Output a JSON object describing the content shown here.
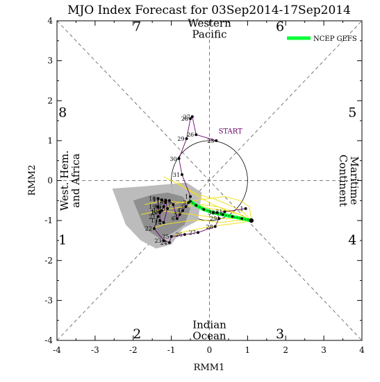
{
  "chart_data": {
    "type": "line",
    "title": "MJO Index Forecast for 03Sep2014-17Sep2014",
    "xlabel": "RMM1",
    "ylabel": "RMM2",
    "xlim": [
      -4,
      4
    ],
    "ylim": [
      -4,
      4
    ],
    "x_ticks": [
      "-4",
      "-3",
      "-2",
      "-1",
      "0",
      "1",
      "2",
      "3",
      "4"
    ],
    "y_ticks": [
      "-4",
      "-3",
      "-2",
      "-1",
      "0",
      "1",
      "2",
      "3",
      "4"
    ],
    "amplitude_circle_radius": 1,
    "grid": false,
    "legend": {
      "position": "top-right",
      "entries": [
        {
          "label": "NCEP GEFS",
          "color": "#00ff33"
        }
      ]
    },
    "phase_numbers": [
      {
        "label": "7",
        "x": -1.9,
        "y": 3.75
      },
      {
        "label": "6",
        "x": 1.85,
        "y": 3.75
      },
      {
        "label": "8",
        "x": -3.85,
        "y": 1.6
      },
      {
        "label": "5",
        "x": 3.75,
        "y": 1.6
      },
      {
        "label": "1",
        "x": -3.85,
        "y": -1.6
      },
      {
        "label": "4",
        "x": 3.75,
        "y": -1.6
      },
      {
        "label": "2",
        "x": -1.9,
        "y": -3.95
      },
      {
        "label": "3",
        "x": 1.85,
        "y": -3.95
      }
    ],
    "region_labels": [
      {
        "lines": [
          "Western",
          "Pacific"
        ],
        "x": 0,
        "y": 3.8,
        "rotate": 0
      },
      {
        "lines": [
          "Indian",
          "Ocean"
        ],
        "x": 0,
        "y": -3.75,
        "rotate": 0
      },
      {
        "lines": [
          "West. Hem.",
          "and Africa"
        ],
        "x": -3.65,
        "y": 0,
        "rotate": -90
      },
      {
        "lines": [
          "Maritime",
          "Continent"
        ],
        "x": 3.65,
        "y": 0,
        "rotate": 90
      }
    ],
    "start_label": {
      "text": "START",
      "x": 0.55,
      "y": 1.18
    },
    "observed_series": {
      "name": "",
      "color": "#660066",
      "points": [
        {
          "label": "25",
          "x": 0.18,
          "y": 1.0
        },
        {
          "label": "26",
          "x": -0.35,
          "y": 1.15
        },
        {
          "label": "27",
          "x": -0.45,
          "y": 1.6
        },
        {
          "label": "28",
          "x": -0.5,
          "y": 1.55
        },
        {
          "label": "29",
          "x": -0.6,
          "y": 1.05
        },
        {
          "label": "30",
          "x": -0.8,
          "y": 0.55
        },
        {
          "label": "31",
          "x": -0.72,
          "y": 0.15
        },
        {
          "label": "1",
          "x": -0.5,
          "y": -0.4
        },
        {
          "label": "2",
          "x": -0.55,
          "y": -0.55
        },
        {
          "label": "3",
          "x": -0.62,
          "y": -0.65
        },
        {
          "label": "4",
          "x": -0.7,
          "y": -0.75
        },
        {
          "label": "5",
          "x": -0.78,
          "y": -0.85
        },
        {
          "label": "6",
          "x": -0.85,
          "y": -0.95
        },
        {
          "label": "7",
          "x": -0.95,
          "y": -0.6
        },
        {
          "label": "8",
          "x": -1.05,
          "y": -0.5
        },
        {
          "label": "9",
          "x": -1.15,
          "y": -0.5
        },
        {
          "label": "10",
          "x": -1.2,
          "y": -0.65
        },
        {
          "label": "11",
          "x": -1.25,
          "y": -0.75
        },
        {
          "label": "12",
          "x": -1.3,
          "y": -0.78
        },
        {
          "label": "13",
          "x": -1.3,
          "y": -1.0
        },
        {
          "label": "14",
          "x": -1.2,
          "y": -1.05
        },
        {
          "label": "15",
          "x": -1.1,
          "y": -0.7
        },
        {
          "label": "16",
          "x": -1.15,
          "y": -0.55
        },
        {
          "label": "17",
          "x": -1.25,
          "y": -0.48
        },
        {
          "label": "18",
          "x": -1.35,
          "y": -0.45
        },
        {
          "label": "19",
          "x": -1.35,
          "y": -0.65
        },
        {
          "label": "20",
          "x": -1.3,
          "y": -0.8
        },
        {
          "label": "21",
          "x": -1.35,
          "y": -0.9
        },
        {
          "label": "22",
          "x": -1.45,
          "y": -1.2
        },
        {
          "label": "23",
          "x": -1.2,
          "y": -1.5
        },
        {
          "label": "24",
          "x": -1.05,
          "y": -1.55
        },
        {
          "label": "25",
          "x": -1.0,
          "y": -1.4
        },
        {
          "label": "26",
          "x": -0.65,
          "y": -1.35
        },
        {
          "label": "27",
          "x": -0.3,
          "y": -1.3
        },
        {
          "label": "28",
          "x": 0.15,
          "y": -1.15
        },
        {
          "label": "29",
          "x": 0.25,
          "y": -0.95
        },
        {
          "label": "30",
          "x": 0.2,
          "y": -0.8
        },
        {
          "label": "31",
          "x": 0.4,
          "y": -0.78
        },
        {
          "label": "1",
          "x": 0.95,
          "y": -0.7
        }
      ]
    },
    "ensemble_mean": {
      "name": "NCEP GEFS",
      "color": "#00ff33",
      "x": [
        1.1,
        0.85,
        0.6,
        0.35,
        0.1,
        -0.15,
        -0.35,
        -0.5
      ],
      "y": [
        -1.0,
        -0.95,
        -0.9,
        -0.85,
        -0.8,
        -0.72,
        -0.62,
        -0.52
      ]
    },
    "ensemble_members": {
      "color": "#f0e020",
      "members": [
        {
          "x": [
            1.1,
            0.8,
            0.4,
            0.0,
            -0.35,
            -0.7,
            -1.2,
            -1.7
          ],
          "y": [
            -1.0,
            -0.85,
            -0.75,
            -0.7,
            -0.6,
            -0.55,
            -0.5,
            -0.6
          ]
        },
        {
          "x": [
            1.1,
            0.75,
            0.35,
            -0.05,
            -0.45,
            -0.9,
            -1.3,
            -1.8
          ],
          "y": [
            -1.0,
            -0.95,
            -0.95,
            -0.9,
            -0.85,
            -0.8,
            -0.75,
            -0.85
          ]
        },
        {
          "x": [
            1.1,
            0.9,
            0.5,
            0.1,
            -0.3,
            -0.6,
            -0.9,
            -1.2
          ],
          "y": [
            -1.0,
            -0.8,
            -0.6,
            -0.45,
            -0.35,
            -0.2,
            -0.05,
            0.1
          ]
        },
        {
          "x": [
            1.1,
            0.85,
            0.45,
            0.05,
            -0.25,
            -0.5,
            -0.75,
            -0.95
          ],
          "y": [
            -1.0,
            -1.05,
            -1.1,
            -1.15,
            -1.2,
            -1.25,
            -1.3,
            -1.4
          ]
        },
        {
          "x": [
            1.1,
            1.05,
            0.8,
            0.4,
            0.0,
            -0.4,
            -0.8,
            -1.1
          ],
          "y": [
            -1.0,
            -0.65,
            -0.5,
            -0.4,
            -0.45,
            -0.5,
            -0.55,
            -0.65
          ]
        },
        {
          "x": [
            1.1,
            0.7,
            0.3,
            -0.1,
            -0.5,
            -0.85,
            -1.2,
            -1.5
          ],
          "y": [
            -1.0,
            -1.0,
            -1.05,
            -1.0,
            -1.0,
            -1.05,
            -1.1,
            -1.2
          ]
        },
        {
          "x": [
            1.1,
            0.8,
            0.45,
            0.1,
            -0.2,
            -0.45,
            -0.7,
            -0.85
          ],
          "y": [
            -1.0,
            -0.85,
            -0.75,
            -0.6,
            -0.45,
            -0.3,
            -0.15,
            0.0
          ]
        },
        {
          "x": [
            1.1,
            0.9,
            0.55,
            0.2,
            -0.2,
            -0.6,
            -1.0,
            -1.45
          ],
          "y": [
            -1.0,
            -0.9,
            -0.75,
            -0.65,
            -0.6,
            -0.65,
            -0.7,
            -0.75
          ]
        }
      ]
    },
    "spread_shading": [
      {
        "color": "#b8b8b8",
        "x": [
          -2.55,
          -1.8,
          -1.2,
          -0.6,
          -0.2,
          -0.3,
          -0.7,
          -1.0,
          -1.4,
          -1.8,
          -2.2
        ],
        "y": [
          -0.2,
          -0.15,
          -0.1,
          -0.05,
          -0.3,
          -1.0,
          -1.2,
          -1.6,
          -1.7,
          -1.5,
          -1.1
        ]
      },
      {
        "color": "#8c8c8c",
        "x": [
          -2.0,
          -1.5,
          -1.1,
          -0.7,
          -0.5,
          -0.65,
          -0.95,
          -1.3,
          -1.7
        ],
        "y": [
          -0.5,
          -0.35,
          -0.3,
          -0.4,
          -0.7,
          -1.1,
          -1.3,
          -1.45,
          -1.2
        ]
      }
    ]
  }
}
